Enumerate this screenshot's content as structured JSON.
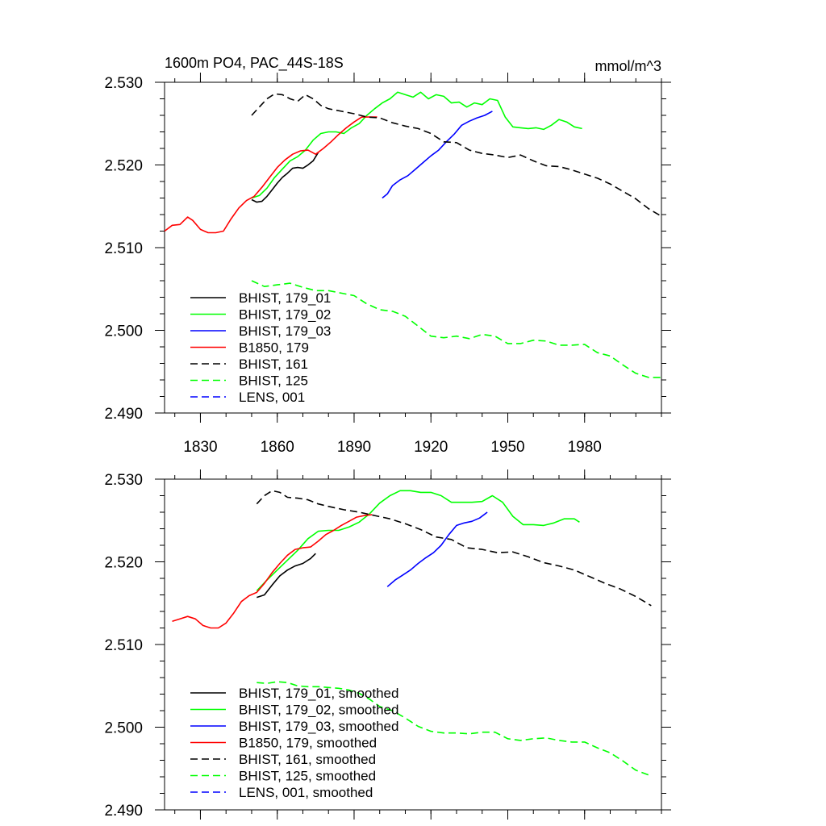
{
  "figure": {
    "title_left": "1600m PO4, PAC_44S-18S",
    "title_right": "mmol/m^3"
  },
  "chart_data": [
    {
      "type": "line",
      "panel": "top",
      "xlim": [
        1816,
        2010
      ],
      "ylim": [
        2.49,
        2.53
      ],
      "x_ticks": [
        1830,
        1860,
        1890,
        1920,
        1950,
        1980
      ],
      "x_tick_labels": [
        "1830",
        "1860",
        "1890",
        "1920",
        "1950",
        "1980"
      ],
      "y_ticks": [
        2.49,
        2.5,
        2.51,
        2.52,
        2.53
      ],
      "y_tick_labels": [
        "2.490",
        "2.500",
        "2.510",
        "2.520",
        "2.530"
      ],
      "grid": false,
      "legend_placement": "lower-left",
      "series": [
        {
          "name": "BHIST, 179_01",
          "color": "#000000",
          "dash": "solid",
          "x": [
            1850,
            1852,
            1854,
            1856,
            1858,
            1860,
            1862,
            1864,
            1866,
            1868,
            1870,
            1872,
            1874,
            1876
          ],
          "y": [
            2.5158,
            2.5155,
            2.5156,
            2.5162,
            2.517,
            2.5178,
            2.5185,
            2.519,
            2.5196,
            2.5197,
            2.5196,
            2.52,
            2.5205,
            2.5215
          ]
        },
        {
          "name": "BHIST, 179_02",
          "color": "#00ff00",
          "dash": "solid",
          "x": [
            1850,
            1853,
            1856,
            1859,
            1862,
            1865,
            1868,
            1871,
            1874,
            1877,
            1880,
            1883,
            1886,
            1889,
            1892,
            1895,
            1898,
            1901,
            1904,
            1907,
            1910,
            1913,
            1916,
            1919,
            1922,
            1925,
            1928,
            1931,
            1934,
            1937,
            1940,
            1943,
            1946,
            1949,
            1952,
            1955,
            1958,
            1961,
            1964,
            1967,
            1970,
            1973,
            1976,
            1979
          ],
          "y": [
            2.516,
            2.5163,
            2.5172,
            2.5185,
            2.5195,
            2.5205,
            2.521,
            2.5218,
            2.523,
            2.5238,
            2.524,
            2.524,
            2.5238,
            2.5245,
            2.525,
            2.526,
            2.5268,
            2.5275,
            2.528,
            2.5288,
            2.5285,
            2.5282,
            2.5288,
            2.528,
            2.5285,
            2.5283,
            2.5275,
            2.5276,
            2.527,
            2.5275,
            2.5273,
            2.528,
            2.5278,
            2.5258,
            2.5246,
            2.5245,
            2.5244,
            2.5245,
            2.5243,
            2.5248,
            2.5255,
            2.5252,
            2.5246,
            2.5244
          ]
        },
        {
          "name": "BHIST, 179_03",
          "color": "#0000ff",
          "dash": "solid",
          "x": [
            1901,
            1903,
            1905,
            1908,
            1911,
            1914,
            1917,
            1920,
            1923,
            1926,
            1929,
            1932,
            1935,
            1938,
            1941,
            1944
          ],
          "y": [
            2.516,
            2.5165,
            2.5175,
            2.5182,
            2.5187,
            2.5195,
            2.5203,
            2.5211,
            2.5218,
            2.5228,
            2.5237,
            2.5248,
            2.5253,
            2.5257,
            2.526,
            2.5265
          ]
        },
        {
          "name": "B1850, 179",
          "color": "#ff0000",
          "dash": "solid",
          "x": [
            1816,
            1819,
            1822,
            1825,
            1827,
            1830,
            1833,
            1836,
            1839,
            1842,
            1845,
            1848,
            1851,
            1854,
            1857,
            1860,
            1863,
            1866,
            1869,
            1872,
            1875,
            1878,
            1881,
            1884,
            1887,
            1890,
            1893,
            1896,
            1899
          ],
          "y": [
            2.512,
            2.5127,
            2.5128,
            2.5137,
            2.5133,
            2.5122,
            2.5118,
            2.5118,
            2.512,
            2.5135,
            2.5148,
            2.5157,
            2.5162,
            2.5173,
            2.5185,
            2.5197,
            2.5206,
            2.5213,
            2.5217,
            2.5218,
            2.5213,
            2.522,
            2.5228,
            2.5237,
            2.5245,
            2.5252,
            2.5258,
            2.5258,
            2.5258
          ]
        },
        {
          "name": "BHIST, 161",
          "color": "#000000",
          "dash": "dashed",
          "x": [
            1850,
            1853,
            1856,
            1859,
            1862,
            1865,
            1868,
            1871,
            1874,
            1877,
            1880,
            1885,
            1890,
            1895,
            1900,
            1905,
            1910,
            1915,
            1920,
            1925,
            1930,
            1935,
            1940,
            1945,
            1950,
            1955,
            1960,
            1965,
            1970,
            1975,
            1980,
            1985,
            1990,
            1995,
            2000,
            2005,
            2010
          ],
          "y": [
            2.526,
            2.527,
            2.528,
            2.5286,
            2.5285,
            2.528,
            2.5277,
            2.5285,
            2.528,
            2.5272,
            2.5268,
            2.5265,
            2.5262,
            2.5258,
            2.5257,
            2.5251,
            2.5247,
            2.5244,
            2.5238,
            2.5228,
            2.5227,
            2.5218,
            2.5214,
            2.5212,
            2.5209,
            2.5212,
            2.5205,
            2.5199,
            2.5198,
            2.5194,
            2.5189,
            2.5184,
            2.5177,
            2.5168,
            2.5159,
            2.5147,
            2.5138
          ]
        },
        {
          "name": "BHIST, 125",
          "color": "#00ff00",
          "dash": "dashed",
          "x": [
            1850,
            1855,
            1860,
            1865,
            1870,
            1875,
            1880,
            1885,
            1890,
            1895,
            1900,
            1905,
            1910,
            1915,
            1920,
            1925,
            1930,
            1935,
            1940,
            1945,
            1950,
            1955,
            1960,
            1965,
            1970,
            1975,
            1980,
            1985,
            1990,
            1995,
            2000,
            2005,
            2010
          ],
          "y": [
            2.506,
            2.5053,
            2.5055,
            2.5057,
            2.5052,
            2.5048,
            2.5048,
            2.5045,
            2.5042,
            2.5032,
            2.5025,
            2.5023,
            2.5017,
            2.5005,
            2.4993,
            2.4991,
            2.4993,
            2.499,
            2.4995,
            2.4993,
            2.4984,
            2.4984,
            2.4988,
            2.4987,
            2.4982,
            2.4982,
            2.4983,
            2.4973,
            2.4969,
            2.4958,
            2.4948,
            2.4943,
            2.4943
          ]
        },
        {
          "name": "LENS, 001",
          "color": "#0000ff",
          "dash": "dashed",
          "x": [],
          "y": []
        }
      ]
    },
    {
      "type": "line",
      "panel": "bottom",
      "xlim": [
        1816,
        2010
      ],
      "ylim": [
        2.49,
        2.53
      ],
      "x_ticks": [
        1830,
        1860,
        1890,
        1920,
        1950,
        1980
      ],
      "y_ticks": [
        2.49,
        2.5,
        2.51,
        2.52,
        2.53
      ],
      "y_tick_labels": [
        "2.490",
        "2.500",
        "2.510",
        "2.520",
        "2.530"
      ],
      "grid": false,
      "legend_placement": "lower-left",
      "series": [
        {
          "name": "BHIST, 179_01, smoothed",
          "color": "#000000",
          "dash": "solid",
          "x": [
            1852,
            1855,
            1858,
            1861,
            1864,
            1867,
            1870,
            1873,
            1875
          ],
          "y": [
            2.5157,
            2.516,
            2.5172,
            2.5183,
            2.519,
            2.5195,
            2.5198,
            2.5204,
            2.521
          ]
        },
        {
          "name": "BHIST, 179_02, smoothed",
          "color": "#00ff00",
          "dash": "solid",
          "x": [
            1852,
            1856,
            1860,
            1864,
            1868,
            1872,
            1876,
            1880,
            1884,
            1888,
            1892,
            1896,
            1900,
            1904,
            1908,
            1912,
            1916,
            1920,
            1924,
            1928,
            1932,
            1936,
            1940,
            1944,
            1948,
            1952,
            1956,
            1960,
            1964,
            1968,
            1972,
            1976,
            1978
          ],
          "y": [
            2.5165,
            2.5178,
            2.519,
            2.5202,
            2.5214,
            2.5228,
            2.5237,
            2.5238,
            2.5238,
            2.5242,
            2.5248,
            2.5258,
            2.5271,
            2.528,
            2.5286,
            2.5286,
            2.5284,
            2.5284,
            2.528,
            2.5272,
            2.5272,
            2.5272,
            2.5273,
            2.528,
            2.5272,
            2.5255,
            2.5245,
            2.5245,
            2.5244,
            2.5247,
            2.5252,
            2.5252,
            2.5248
          ]
        },
        {
          "name": "BHIST, 179_03, smoothed",
          "color": "#0000ff",
          "dash": "solid",
          "x": [
            1903,
            1906,
            1909,
            1912,
            1915,
            1918,
            1921,
            1924,
            1927,
            1930,
            1933,
            1936,
            1939,
            1942
          ],
          "y": [
            2.517,
            2.5178,
            2.5184,
            2.519,
            2.5198,
            2.5205,
            2.5211,
            2.522,
            2.5233,
            2.5244,
            2.5247,
            2.5249,
            2.5253,
            2.526
          ]
        },
        {
          "name": "B1850, 179, smoothed",
          "color": "#ff0000",
          "dash": "solid",
          "x": [
            1819,
            1822,
            1825,
            1828,
            1831,
            1834,
            1837,
            1840,
            1843,
            1846,
            1849,
            1852,
            1855,
            1858,
            1861,
            1864,
            1867,
            1870,
            1873,
            1876,
            1879,
            1882,
            1885,
            1888,
            1891,
            1894,
            1897
          ],
          "y": [
            2.5128,
            2.5131,
            2.5134,
            2.5131,
            2.5123,
            2.512,
            2.512,
            2.5126,
            2.5138,
            2.5152,
            2.5159,
            2.5163,
            2.5174,
            2.5187,
            2.5198,
            2.5208,
            2.5215,
            2.5217,
            2.5218,
            2.5225,
            2.5233,
            2.5238,
            2.5244,
            2.5249,
            2.5254,
            2.5256,
            2.5257
          ]
        },
        {
          "name": "BHIST, 161, smoothed",
          "color": "#000000",
          "dash": "dashed",
          "x": [
            1852,
            1855,
            1858,
            1861,
            1864,
            1868,
            1872,
            1876,
            1880,
            1886,
            1892,
            1898,
            1904,
            1910,
            1916,
            1922,
            1928,
            1934,
            1940,
            1946,
            1952,
            1958,
            1964,
            1970,
            1976,
            1982,
            1988,
            1994,
            2000,
            2006
          ],
          "y": [
            2.527,
            2.528,
            2.5286,
            2.5284,
            2.5278,
            2.5277,
            2.5275,
            2.527,
            2.5267,
            2.5263,
            2.526,
            2.5256,
            2.5252,
            2.5246,
            2.5239,
            2.523,
            2.5227,
            2.5217,
            2.5215,
            2.5211,
            2.5212,
            2.5206,
            2.5199,
            2.5195,
            2.519,
            2.5182,
            2.5174,
            2.5167,
            2.5158,
            2.5147
          ]
        },
        {
          "name": "BHIST, 125, smoothed",
          "color": "#00ff00",
          "dash": "dashed",
          "x": [
            1852,
            1856,
            1860,
            1864,
            1868,
            1872,
            1876,
            1880,
            1884,
            1888,
            1892,
            1896,
            1900,
            1905,
            1910,
            1915,
            1920,
            1925,
            1930,
            1935,
            1940,
            1945,
            1950,
            1955,
            1960,
            1965,
            1970,
            1975,
            1980,
            1985,
            1990,
            1995,
            2000,
            2006
          ],
          "y": [
            2.5054,
            2.5053,
            2.5055,
            2.5054,
            2.505,
            2.5049,
            2.5049,
            2.5048,
            2.5047,
            2.5045,
            2.5041,
            2.5034,
            2.5025,
            2.502,
            2.5011,
            2.5001,
            2.4995,
            2.4993,
            2.4993,
            2.4992,
            2.4994,
            2.4994,
            2.4986,
            2.4984,
            2.4986,
            2.4987,
            2.4984,
            2.4982,
            2.4982,
            2.4975,
            2.4969,
            2.4959,
            2.4948,
            2.4941
          ]
        },
        {
          "name": "LENS, 001, smoothed",
          "color": "#0000ff",
          "dash": "dashed",
          "x": [],
          "y": []
        }
      ]
    }
  ]
}
